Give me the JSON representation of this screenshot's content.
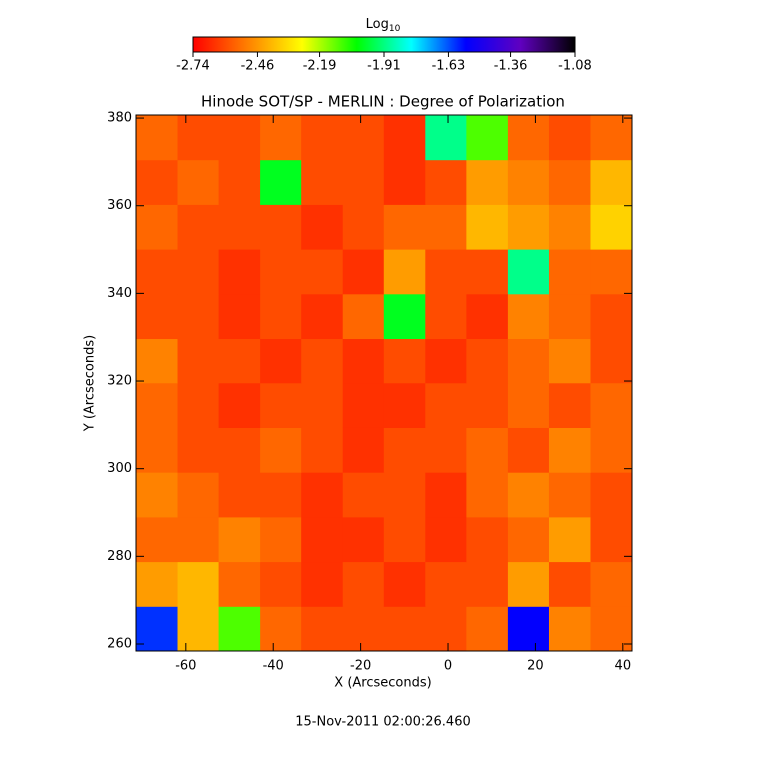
{
  "chart_data": {
    "type": "heatmap",
    "title": "Hinode SOT/SP - MERLIN : Degree of Polarization",
    "x_label": "X (Arcseconds)",
    "y_label": "Y (Arcseconds)",
    "date": "15-Nov-2011 02:00:26.460",
    "colorbar_title": {
      "base": "Log",
      "subscript": "10"
    },
    "colorbar_lim": [
      -2.74,
      -1.08
    ],
    "colorbar_ticks": [
      -2.74,
      -2.46,
      -2.19,
      -1.91,
      -1.63,
      -1.36,
      -1.08
    ],
    "colormap": [
      "#ff0000",
      "#ff8000",
      "#ffff00",
      "#00ff00",
      "#00ffff",
      "#0000ff",
      "#6000c0",
      "#000000"
    ],
    "xlim": [
      -71.4,
      42.1
    ],
    "ylim": [
      258.4,
      380.7
    ],
    "xticks": [
      -60,
      -40,
      -20,
      0,
      20,
      40
    ],
    "yticks": [
      260,
      280,
      300,
      320,
      340,
      360,
      380
    ],
    "xbins": [
      -71.4,
      -61.9,
      -52.5,
      -43.0,
      -33.6,
      -24.1,
      -14.7,
      -5.2,
      4.2,
      13.7,
      23.1,
      32.6,
      42.1
    ],
    "ybins": [
      258.4,
      268.6,
      278.8,
      289.0,
      299.2,
      309.4,
      319.6,
      329.7,
      339.9,
      350.1,
      360.3,
      370.5,
      380.7
    ],
    "values": [
      [
        -1.6,
        -2.4,
        -2.1,
        -2.55,
        -2.6,
        -2.6,
        -2.6,
        -2.6,
        -2.55,
        -1.55,
        -2.5,
        -2.55
      ],
      [
        -2.45,
        -2.4,
        -2.55,
        -2.6,
        -2.65,
        -2.6,
        -2.65,
        -2.6,
        -2.6,
        -2.45,
        -2.6,
        -2.55
      ],
      [
        -2.55,
        -2.55,
        -2.5,
        -2.55,
        -2.65,
        -2.65,
        -2.6,
        -2.65,
        -2.6,
        -2.55,
        -2.45,
        -2.6
      ],
      [
        -2.5,
        -2.55,
        -2.6,
        -2.6,
        -2.65,
        -2.6,
        -2.6,
        -2.65,
        -2.55,
        -2.5,
        -2.55,
        -2.6
      ],
      [
        -2.55,
        -2.6,
        -2.6,
        -2.55,
        -2.6,
        -2.65,
        -2.6,
        -2.6,
        -2.55,
        -2.6,
        -2.5,
        -2.55
      ],
      [
        -2.55,
        -2.6,
        -2.65,
        -2.6,
        -2.6,
        -2.65,
        -2.65,
        -2.6,
        -2.6,
        -2.55,
        -2.6,
        -2.55
      ],
      [
        -2.5,
        -2.6,
        -2.6,
        -2.65,
        -2.6,
        -2.65,
        -2.6,
        -2.65,
        -2.6,
        -2.55,
        -2.5,
        -2.6
      ],
      [
        -2.6,
        -2.6,
        -2.65,
        -2.6,
        -2.65,
        -2.55,
        -2.0,
        -2.6,
        -2.65,
        -2.5,
        -2.55,
        -2.6
      ],
      [
        -2.6,
        -2.6,
        -2.65,
        -2.6,
        -2.6,
        -2.65,
        -2.45,
        -2.6,
        -2.6,
        -1.9,
        -2.55,
        -2.55
      ],
      [
        -2.55,
        -2.6,
        -2.6,
        -2.6,
        -2.65,
        -2.6,
        -2.55,
        -2.55,
        -2.4,
        -2.45,
        -2.5,
        -2.35
      ],
      [
        -2.6,
        -2.55,
        -2.6,
        -2.0,
        -2.6,
        -2.6,
        -2.65,
        -2.6,
        -2.45,
        -2.5,
        -2.55,
        -2.4
      ],
      [
        -2.55,
        -2.6,
        -2.6,
        -2.55,
        -2.6,
        -2.6,
        -2.65,
        -1.9,
        -2.1,
        -2.55,
        -2.6,
        -2.55
      ]
    ]
  }
}
